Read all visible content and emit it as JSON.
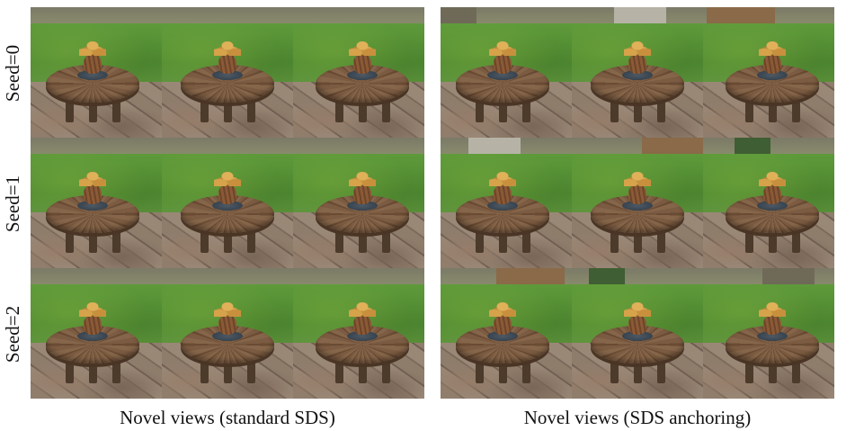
{
  "row_labels": [
    "Seed=0",
    "Seed=1",
    "Seed=2"
  ],
  "captions": {
    "left": "Novel views (standard SDS)",
    "right": "Novel views (SDS anchoring)"
  },
  "colors": {
    "grass": "#5e9a3a",
    "table": "#7b5b41",
    "plate": "#4d5a66",
    "pot": "#8a5a36",
    "leaves": "#d6a24a"
  }
}
